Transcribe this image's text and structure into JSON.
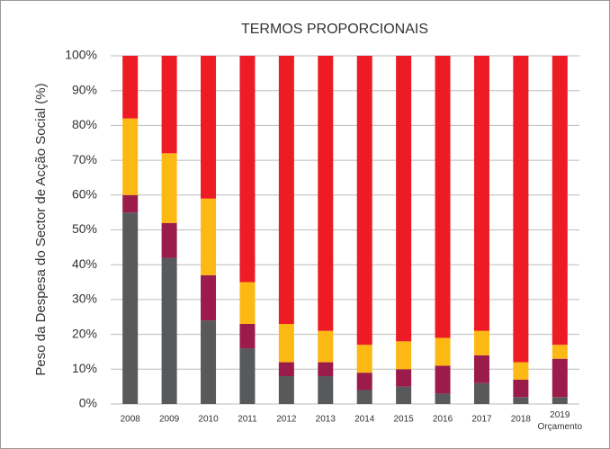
{
  "chart_data": {
    "type": "stacked_bar",
    "title": "TERMOS PROPORCIONAIS",
    "y_label": "Peso da Despesa do Sector de Acção Social (%)",
    "categories": [
      "2008",
      "2009",
      "2010",
      "2011",
      "2012",
      "2013",
      "2014",
      "2015",
      "2016",
      "2017",
      "2018",
      "2019 Orçamento"
    ],
    "series": [
      {
        "color": "#58595b",
        "values": [
          55,
          42,
          24,
          16,
          8,
          8,
          4,
          5,
          3,
          6,
          2,
          2
        ]
      },
      {
        "color": "#9b1b4a",
        "values": [
          5,
          10,
          13,
          7,
          4,
          4,
          5,
          5,
          8,
          8,
          5,
          11
        ]
      },
      {
        "color": "#fdb913",
        "values": [
          22,
          20,
          22,
          12,
          11,
          9,
          8,
          8,
          8,
          7,
          5,
          4
        ]
      },
      {
        "color": "#ed1c24",
        "values": [
          18,
          28,
          41,
          65,
          77,
          79,
          83,
          82,
          81,
          79,
          88,
          83
        ]
      }
    ],
    "ylim": [
      0,
      100
    ],
    "yticks": [
      {
        "value": 0,
        "label": "0%"
      },
      {
        "value": 10,
        "label": "10%"
      },
      {
        "value": 20,
        "label": "20%"
      },
      {
        "value": 30,
        "label": "30%"
      },
      {
        "value": 40,
        "label": "40%"
      },
      {
        "value": 50,
        "label": "50%"
      },
      {
        "value": 60,
        "label": "60%"
      },
      {
        "value": 70,
        "label": "70%"
      },
      {
        "value": 80,
        "label": "80%"
      },
      {
        "value": 90,
        "label": "90%"
      },
      {
        "value": 100,
        "label": "100%"
      }
    ],
    "grid": true
  }
}
